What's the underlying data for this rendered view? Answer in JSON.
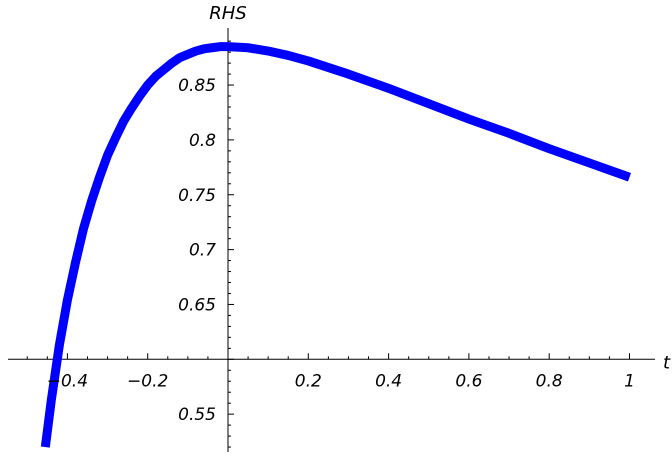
{
  "chart_data": {
    "type": "line",
    "xlabel": "t",
    "ylabel": "RHS",
    "xlim": [
      -0.55,
      1.0
    ],
    "ylim": [
      0.52,
      0.89
    ],
    "x_axis_crosses_y": 0.6,
    "x_ticks": [
      {
        "value": -0.4,
        "label": "−0.4"
      },
      {
        "value": -0.2,
        "label": "−0.2"
      },
      {
        "value": 0.2,
        "label": "0.2"
      },
      {
        "value": 0.4,
        "label": "0.4"
      },
      {
        "value": 0.6,
        "label": "0.6"
      },
      {
        "value": 0.8,
        "label": "0.8"
      },
      {
        "value": 1.0,
        "label": "1"
      }
    ],
    "y_ticks": [
      {
        "value": 0.55,
        "label": "0.55"
      },
      {
        "value": 0.65,
        "label": "0.65"
      },
      {
        "value": 0.7,
        "label": "0.7"
      },
      {
        "value": 0.75,
        "label": "0.75"
      },
      {
        "value": 0.8,
        "label": "0.8"
      },
      {
        "value": 0.85,
        "label": "0.85"
      }
    ],
    "grid": false,
    "series": [
      {
        "color": "#0000ff",
        "x": [
          -0.455,
          -0.44,
          -0.42,
          -0.4,
          -0.38,
          -0.36,
          -0.34,
          -0.32,
          -0.3,
          -0.28,
          -0.26,
          -0.24,
          -0.22,
          -0.2,
          -0.18,
          -0.16,
          -0.14,
          -0.12,
          -0.1,
          -0.08,
          -0.06,
          -0.04,
          -0.02,
          0.0,
          0.05,
          0.1,
          0.15,
          0.2,
          0.3,
          0.4,
          0.5,
          0.6,
          0.7,
          0.8,
          0.9,
          1.0
        ],
        "y": [
          0.52,
          0.563,
          0.613,
          0.654,
          0.688,
          0.719,
          0.744,
          0.766,
          0.786,
          0.802,
          0.817,
          0.829,
          0.84,
          0.85,
          0.858,
          0.864,
          0.87,
          0.875,
          0.878,
          0.881,
          0.883,
          0.884,
          0.885,
          0.885,
          0.884,
          0.881,
          0.877,
          0.872,
          0.86,
          0.847,
          0.833,
          0.819,
          0.806,
          0.792,
          0.779,
          0.766
        ]
      }
    ]
  }
}
